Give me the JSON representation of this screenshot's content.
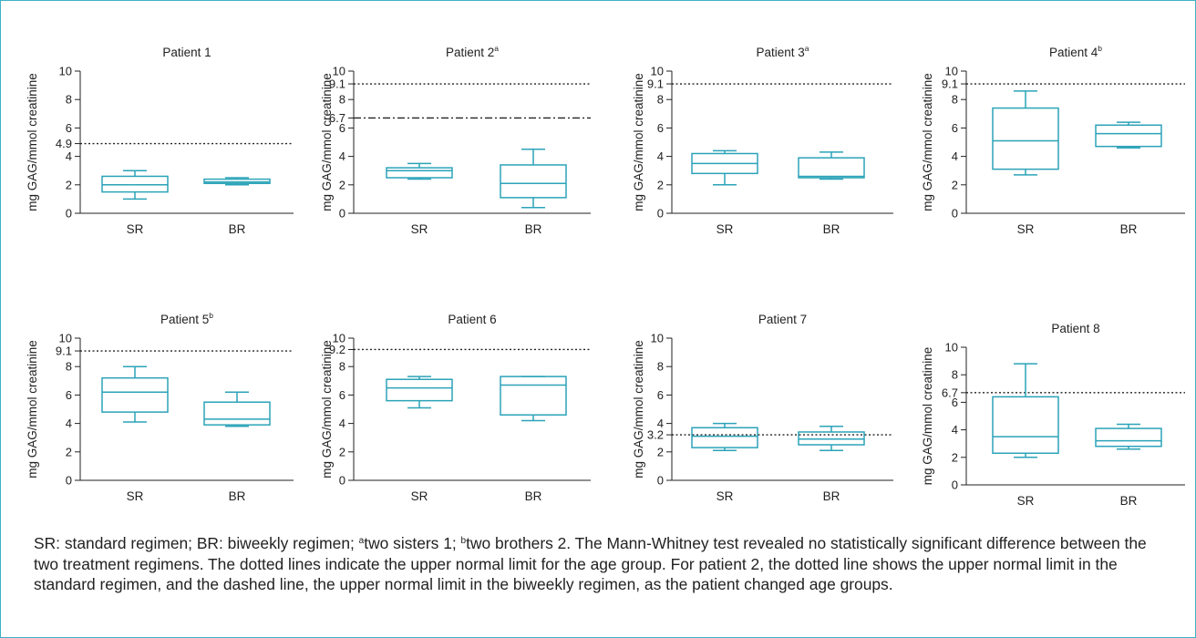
{
  "colors": {
    "box": "#2ba3b8",
    "ink": "#222222",
    "frame": "#3fb0c4"
  },
  "ylabel": "mg GAG/mmol creatinine",
  "caption": [
    {
      "t": "SR: standard regimen; BR: biweekly regimen; "
    },
    {
      "t": "a",
      "sup": true
    },
    {
      "t": "two sisters 1; "
    },
    {
      "t": "b",
      "sup": true
    },
    {
      "t": "two brothers 2. The Mann-Whitney test revealed no statistically significant difference between the two treatment regimens. The dotted lines indicate the upper normal limit for the age group. For patient 2, the dotted line shows the upper normal limit in the standard regimen, and the dashed line, the upper normal limit in the biweekly regimen, as the patient changed age groups."
    }
  ],
  "chart_data": [
    {
      "type": "box",
      "title": "Patient 1",
      "title_sup": "",
      "categories": [
        "SR",
        "BR"
      ],
      "ylabel": "mg GAG/mmol creatinine",
      "ylim": [
        0,
        10
      ],
      "yticks": [
        0,
        2,
        4,
        4.9,
        6,
        8,
        10
      ],
      "series": [
        {
          "name": "SR",
          "min": 1.0,
          "q1": 1.5,
          "median": 2.0,
          "q3": 2.6,
          "max": 3.0
        },
        {
          "name": "BR",
          "min": 2.0,
          "q1": 2.1,
          "median": 2.2,
          "q3": 2.4,
          "max": 2.5
        }
      ],
      "reference_lines": [
        {
          "value": 4.9,
          "style": "dotted"
        }
      ]
    },
    {
      "type": "box",
      "title": "Patient 2",
      "title_sup": "a",
      "categories": [
        "SR",
        "BR"
      ],
      "ylabel": "mg GAG/mmol creatinine",
      "ylim": [
        0,
        10
      ],
      "yticks": [
        0,
        2,
        4,
        6,
        6.7,
        8,
        9.1,
        10
      ],
      "series": [
        {
          "name": "SR",
          "min": 2.4,
          "q1": 2.5,
          "median": 3.0,
          "q3": 3.2,
          "max": 3.5
        },
        {
          "name": "BR",
          "min": 0.4,
          "q1": 1.1,
          "median": 2.1,
          "q3": 3.4,
          "max": 4.5
        }
      ],
      "reference_lines": [
        {
          "value": 9.1,
          "style": "dotted"
        },
        {
          "value": 6.7,
          "style": "dashdot"
        }
      ]
    },
    {
      "type": "box",
      "title": "Patient 3",
      "title_sup": "a",
      "categories": [
        "SR",
        "BR"
      ],
      "ylabel": "mg GAG/mmol creatinine",
      "ylim": [
        0,
        10
      ],
      "yticks": [
        0,
        2,
        4,
        6,
        8,
        9.1,
        10
      ],
      "series": [
        {
          "name": "SR",
          "min": 2.0,
          "q1": 2.8,
          "median": 3.5,
          "q3": 4.2,
          "max": 4.4
        },
        {
          "name": "BR",
          "min": 2.4,
          "q1": 2.5,
          "median": 2.6,
          "q3": 3.9,
          "max": 4.3
        }
      ],
      "reference_lines": [
        {
          "value": 9.1,
          "style": "dotted"
        }
      ]
    },
    {
      "type": "box",
      "title": "Patient 4",
      "title_sup": "b",
      "categories": [
        "SR",
        "BR"
      ],
      "ylabel": "mg GAG/mmol creatinine",
      "ylim": [
        0,
        10
      ],
      "yticks": [
        0,
        2,
        4,
        6,
        8,
        9.1,
        10
      ],
      "series": [
        {
          "name": "SR",
          "min": 2.7,
          "q1": 3.1,
          "median": 5.1,
          "q3": 7.4,
          "max": 8.6
        },
        {
          "name": "BR",
          "min": 4.6,
          "q1": 4.7,
          "median": 5.6,
          "q3": 6.2,
          "max": 6.4
        }
      ],
      "reference_lines": [
        {
          "value": 9.1,
          "style": "dotted"
        }
      ]
    },
    {
      "type": "box",
      "title": "Patient 5",
      "title_sup": "b",
      "categories": [
        "SR",
        "BR"
      ],
      "ylabel": "mg GAG/mmol creatinine",
      "ylim": [
        0,
        10
      ],
      "yticks": [
        0,
        2,
        4,
        6,
        8,
        9.1,
        10
      ],
      "series": [
        {
          "name": "SR",
          "min": 4.1,
          "q1": 4.8,
          "median": 6.2,
          "q3": 7.2,
          "max": 8.0
        },
        {
          "name": "BR",
          "min": 3.8,
          "q1": 3.9,
          "median": 4.3,
          "q3": 5.5,
          "max": 6.2
        }
      ],
      "reference_lines": [
        {
          "value": 9.1,
          "style": "dotted"
        }
      ]
    },
    {
      "type": "box",
      "title": "Patient 6",
      "title_sup": "",
      "categories": [
        "SR",
        "BR"
      ],
      "ylabel": "mg GAG/mmol creatinine",
      "ylim": [
        0,
        10
      ],
      "yticks": [
        0,
        2,
        4,
        6,
        8,
        9.2,
        10
      ],
      "series": [
        {
          "name": "SR",
          "min": 5.1,
          "q1": 5.6,
          "median": 6.5,
          "q3": 7.1,
          "max": 7.3
        },
        {
          "name": "BR",
          "min": 4.2,
          "q1": 4.6,
          "median": 6.7,
          "q3": 7.3,
          "max": 7.3
        }
      ],
      "reference_lines": [
        {
          "value": 9.2,
          "style": "dotted"
        }
      ]
    },
    {
      "type": "box",
      "title": "Patient 7",
      "title_sup": "",
      "categories": [
        "SR",
        "BR"
      ],
      "ylabel": "mg GAG/mmol creatinine",
      "ylim": [
        0,
        10
      ],
      "yticks": [
        0,
        2,
        3.2,
        4,
        6,
        8,
        10
      ],
      "series": [
        {
          "name": "SR",
          "min": 2.1,
          "q1": 2.3,
          "median": 3.1,
          "q3": 3.7,
          "max": 4.0
        },
        {
          "name": "BR",
          "min": 2.1,
          "q1": 2.5,
          "median": 2.9,
          "q3": 3.4,
          "max": 3.8
        }
      ],
      "reference_lines": [
        {
          "value": 3.2,
          "style": "dotted"
        }
      ]
    },
    {
      "type": "box",
      "title": "Patient 8",
      "title_sup": "",
      "categories": [
        "SR",
        "BR"
      ],
      "ylabel": "mg GAG/mmol creatinine",
      "ylim": [
        0,
        10
      ],
      "yticks": [
        0,
        2,
        4,
        6,
        6.7,
        8,
        10
      ],
      "series": [
        {
          "name": "SR",
          "min": 2.0,
          "q1": 2.3,
          "median": 3.5,
          "q3": 6.4,
          "max": 8.8
        },
        {
          "name": "BR",
          "min": 2.6,
          "q1": 2.8,
          "median": 3.2,
          "q3": 4.1,
          "max": 4.4
        }
      ],
      "reference_lines": [
        {
          "value": 6.7,
          "style": "dotted"
        }
      ]
    }
  ]
}
